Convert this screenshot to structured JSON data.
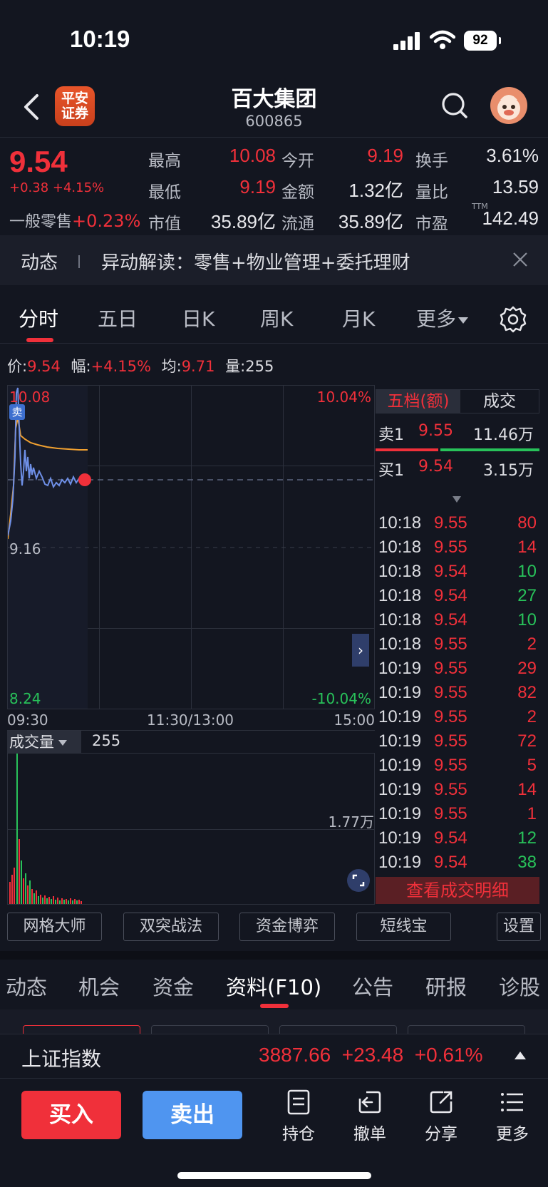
{
  "status_bar": {
    "time": "10:19",
    "battery": "92"
  },
  "header": {
    "logo_text": "平安\n证券",
    "stock_name": "百大集团",
    "stock_code": "600865"
  },
  "quote": {
    "price": "9.54",
    "change": "+0.38 +4.15%",
    "sector_name": "一般零售",
    "sector_change": "+0.23%",
    "fields": [
      {
        "label": "最高",
        "value": "10.08",
        "color": "#f0303a"
      },
      {
        "label": "今开",
        "value": "9.19",
        "color": "#f0303a"
      },
      {
        "label": "换手",
        "value": "3.61%",
        "color": "#e8e8ec"
      },
      {
        "label": "最低",
        "value": "9.19",
        "color": "#f0303a"
      },
      {
        "label": "金额",
        "value": "1.32亿",
        "color": "#e8e8ec"
      },
      {
        "label": "量比",
        "value": "13.59",
        "color": "#e8e8ec"
      },
      {
        "label": "市值",
        "value": "35.89亿",
        "color": "#e8e8ec"
      },
      {
        "label": "流通",
        "value": "35.89亿",
        "color": "#e8e8ec"
      },
      {
        "label": "市盈",
        "value": "142.49",
        "color": "#e8e8ec"
      }
    ],
    "pe_suffix": "TTM"
  },
  "news": {
    "tag": "动态",
    "text": "异动解读：零售+物业管理+委托理财"
  },
  "chart_tabs": [
    "分时",
    "五日",
    "日K",
    "周K",
    "月K",
    "更多"
  ],
  "info_bar": {
    "price_label": "价:",
    "price": "9.54",
    "amp_label": "幅:",
    "amp": "+4.15%",
    "avg_label": "均:",
    "avg": "9.71",
    "vol_label": "量:",
    "vol": "255"
  },
  "intraday": {
    "high_label": "10.08",
    "pct_high": "10.04%",
    "mid_label": "9.16",
    "low_label": "8.24",
    "pct_low": "-10.04%",
    "sell_marker": "卖",
    "time_labels": [
      "09:30",
      "11:30/13:00",
      "15:00"
    ]
  },
  "volume": {
    "selector": "成交量",
    "value": "255",
    "max_label": "1.77万"
  },
  "order_book": {
    "tab_active": "五档(额)",
    "tab_other": "成交",
    "ask": {
      "label": "卖1",
      "price": "9.55",
      "amount": "11.46万"
    },
    "bid": {
      "label": "买1",
      "price": "9.54",
      "amount": "3.15万"
    },
    "trades": [
      {
        "time": "10:18",
        "price": "9.55",
        "vol": "80",
        "color": "#f0303a"
      },
      {
        "time": "10:18",
        "price": "9.55",
        "vol": "14",
        "color": "#f0303a"
      },
      {
        "time": "10:18",
        "price": "9.54",
        "vol": "10",
        "color": "#28c25a"
      },
      {
        "time": "10:18",
        "price": "9.54",
        "vol": "27",
        "color": "#28c25a"
      },
      {
        "time": "10:18",
        "price": "9.54",
        "vol": "10",
        "color": "#28c25a"
      },
      {
        "time": "10:18",
        "price": "9.55",
        "vol": "2",
        "color": "#f0303a"
      },
      {
        "time": "10:19",
        "price": "9.55",
        "vol": "29",
        "color": "#f0303a"
      },
      {
        "time": "10:19",
        "price": "9.55",
        "vol": "82",
        "color": "#f0303a"
      },
      {
        "time": "10:19",
        "price": "9.55",
        "vol": "2",
        "color": "#f0303a"
      },
      {
        "time": "10:19",
        "price": "9.55",
        "vol": "72",
        "color": "#f0303a"
      },
      {
        "time": "10:19",
        "price": "9.55",
        "vol": "5",
        "color": "#f0303a"
      },
      {
        "time": "10:19",
        "price": "9.55",
        "vol": "14",
        "color": "#f0303a"
      },
      {
        "time": "10:19",
        "price": "9.55",
        "vol": "1",
        "color": "#f0303a"
      },
      {
        "time": "10:19",
        "price": "9.54",
        "vol": "12",
        "color": "#28c25a"
      },
      {
        "time": "10:19",
        "price": "9.54",
        "vol": "38",
        "color": "#28c25a"
      }
    ],
    "detail_button": "查看成交明细"
  },
  "tools": [
    "网格大师",
    "双突战法",
    "资金博弈",
    "短线宝",
    "设置"
  ],
  "sub_tabs": [
    "动态",
    "机会",
    "资金",
    "资料(F10)",
    "公告",
    "研报",
    "诊股"
  ],
  "index_bar": {
    "name": "上证指数",
    "value": "3887.66",
    "change": "+23.48",
    "pct": "+0.61%"
  },
  "bottom_bar": {
    "buy": "买入",
    "sell": "卖出",
    "items": [
      "持仓",
      "撤单",
      "分享",
      "更多"
    ]
  },
  "colors": {
    "up": "#f0303a",
    "down": "#28c25a",
    "background": "#131620",
    "accent_blue": "#4f95f0"
  }
}
